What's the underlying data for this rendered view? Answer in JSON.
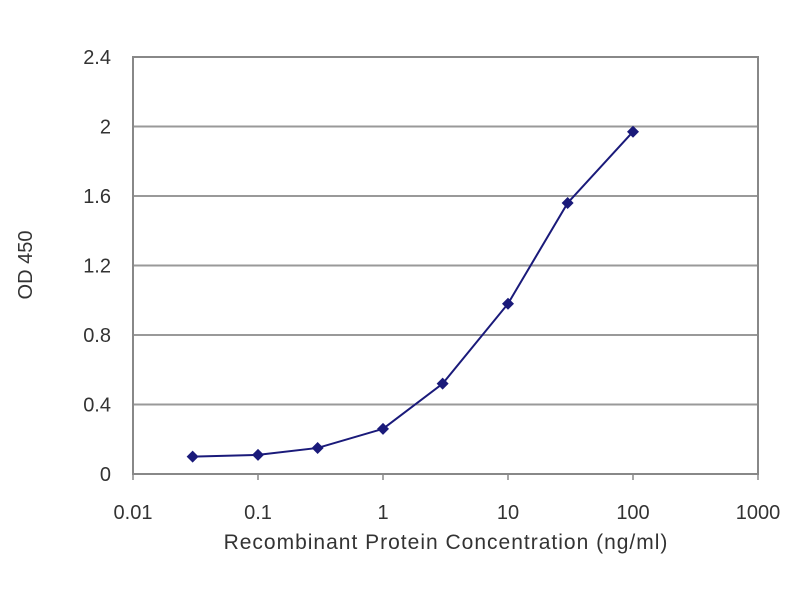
{
  "chart_data": {
    "type": "line",
    "title": "",
    "xlabel": "Recombinant Protein Concentration (ng/ml)",
    "ylabel": "OD 450",
    "xscale": "log",
    "xlim": [
      0.01,
      1000
    ],
    "ylim": [
      0,
      2.4
    ],
    "xticks": [
      "0.01",
      "0.1",
      "1",
      "10",
      "100",
      "1000"
    ],
    "yticks": [
      "0",
      "0.4",
      "0.8",
      "1.2",
      "1.6",
      "2",
      "2.4"
    ],
    "grid": "horizontal",
    "legend": "none",
    "series": [
      {
        "color": "#1a1a7a",
        "marker": "diamond",
        "x": [
          0.03,
          0.1,
          0.3,
          1,
          3,
          10,
          30,
          100
        ],
        "y": [
          0.1,
          0.11,
          0.15,
          0.26,
          0.52,
          0.98,
          1.56,
          1.97
        ]
      }
    ]
  }
}
